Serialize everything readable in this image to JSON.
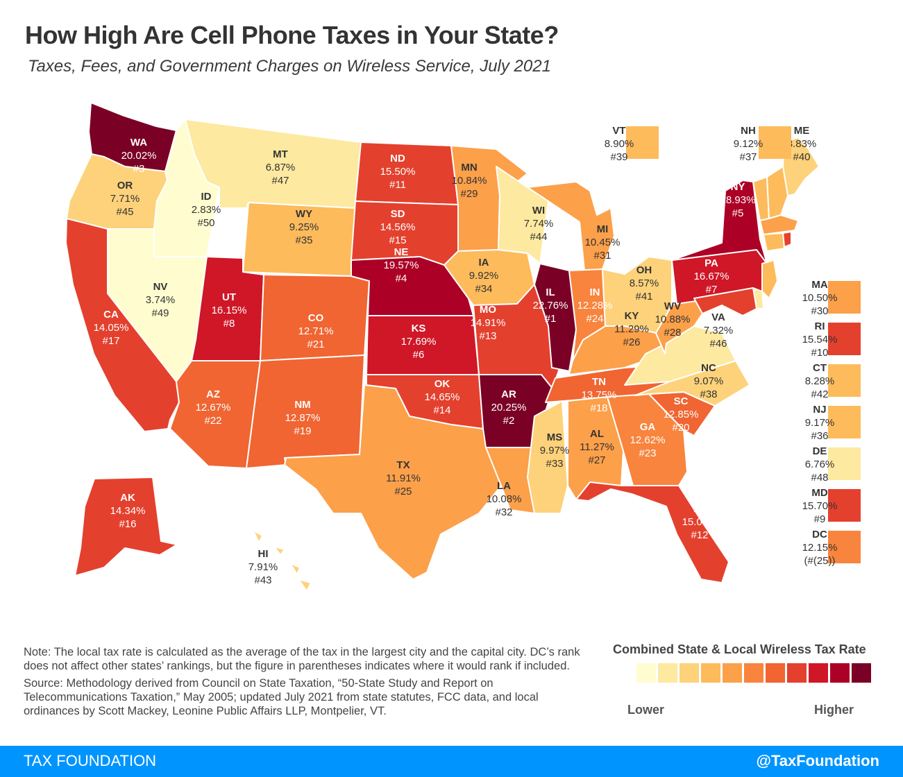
{
  "header": {
    "title": "How High Are Cell Phone Taxes in Your State?",
    "subtitle": "Taxes, Fees, and Government Charges on Wireless Service, July 2021"
  },
  "palette": [
    "#fffdd0",
    "#fde9a0",
    "#fdd27a",
    "#fdbb5c",
    "#fca04a",
    "#f8843d",
    "#f06532",
    "#e4402e",
    "#cf1727",
    "#ac0026",
    "#7a0026"
  ],
  "states": [
    {
      "abbr": "WA",
      "rate": "20.02%",
      "rank": "#3",
      "level": 10
    },
    {
      "abbr": "OR",
      "rate": "7.71%",
      "rank": "#45",
      "level": 2
    },
    {
      "abbr": "ID",
      "rate": "2.83%",
      "rank": "#50",
      "level": 0
    },
    {
      "abbr": "MT",
      "rate": "6.87%",
      "rank": "#47",
      "level": 1
    },
    {
      "abbr": "WY",
      "rate": "9.25%",
      "rank": "#35",
      "level": 3
    },
    {
      "abbr": "NV",
      "rate": "3.74%",
      "rank": "#49",
      "level": 0
    },
    {
      "abbr": "UT",
      "rate": "16.15%",
      "rank": "#8",
      "level": 8
    },
    {
      "abbr": "CA",
      "rate": "14.05%",
      "rank": "#17",
      "level": 7
    },
    {
      "abbr": "AZ",
      "rate": "12.67%",
      "rank": "#22",
      "level": 6
    },
    {
      "abbr": "CO",
      "rate": "12.71%",
      "rank": "#21",
      "level": 6
    },
    {
      "abbr": "NM",
      "rate": "12.87%",
      "rank": "#19",
      "level": 6
    },
    {
      "abbr": "ND",
      "rate": "15.50%",
      "rank": "#11",
      "level": 7
    },
    {
      "abbr": "SD",
      "rate": "14.56%",
      "rank": "#15",
      "level": 7
    },
    {
      "abbr": "NE",
      "rate": "19.57%",
      "rank": "#4",
      "level": 9
    },
    {
      "abbr": "KS",
      "rate": "17.69%",
      "rank": "#6",
      "level": 8
    },
    {
      "abbr": "OK",
      "rate": "14.65%",
      "rank": "#14",
      "level": 7
    },
    {
      "abbr": "TX",
      "rate": "11.91%",
      "rank": "#25",
      "level": 4
    },
    {
      "abbr": "MN",
      "rate": "10.84%",
      "rank": "#29",
      "level": 4
    },
    {
      "abbr": "IA",
      "rate": "9.92%",
      "rank": "#34",
      "level": 3
    },
    {
      "abbr": "MO",
      "rate": "14.91%",
      "rank": "#13",
      "level": 7
    },
    {
      "abbr": "AR",
      "rate": "20.25%",
      "rank": "#2",
      "level": 10
    },
    {
      "abbr": "LA",
      "rate": "10.08%",
      "rank": "#32",
      "level": 4
    },
    {
      "abbr": "WI",
      "rate": "7.74%",
      "rank": "#44",
      "level": 1
    },
    {
      "abbr": "IL",
      "rate": "22.76%",
      "rank": "#1",
      "level": 10
    },
    {
      "abbr": "MI",
      "rate": "10.45%",
      "rank": "#31",
      "level": 4
    },
    {
      "abbr": "IN",
      "rate": "12.28%",
      "rank": "#24",
      "level": 5
    },
    {
      "abbr": "OH",
      "rate": "8.57%",
      "rank": "#41",
      "level": 2
    },
    {
      "abbr": "KY",
      "rate": "11.29%",
      "rank": "#26",
      "level": 4
    },
    {
      "abbr": "TN",
      "rate": "13.75%",
      "rank": "#18",
      "level": 6
    },
    {
      "abbr": "MS",
      "rate": "9.97%",
      "rank": "#33",
      "level": 2
    },
    {
      "abbr": "AL",
      "rate": "11.27%",
      "rank": "#27",
      "level": 4
    },
    {
      "abbr": "GA",
      "rate": "12.62%",
      "rank": "#23",
      "level": 5
    },
    {
      "abbr": "FL",
      "rate": "15.03%",
      "rank": "#12",
      "level": 7
    },
    {
      "abbr": "SC",
      "rate": "12.85%",
      "rank": "#20",
      "level": 6
    },
    {
      "abbr": "NC",
      "rate": "9.07%",
      "rank": "#38",
      "level": 2
    },
    {
      "abbr": "VA",
      "rate": "7.32%",
      "rank": "#46",
      "level": 1
    },
    {
      "abbr": "WV",
      "rate": "10.88%",
      "rank": "#28",
      "level": 4
    },
    {
      "abbr": "PA",
      "rate": "16.67%",
      "rank": "#7",
      "level": 8
    },
    {
      "abbr": "NY",
      "rate": "18.93%",
      "rank": "#5",
      "level": 9
    },
    {
      "abbr": "ME",
      "rate": "8.83%",
      "rank": "#40",
      "level": 2
    },
    {
      "abbr": "AK",
      "rate": "14.34%",
      "rank": "#16",
      "level": 7
    },
    {
      "abbr": "HI",
      "rate": "7.91%",
      "rank": "#43",
      "level": 2
    }
  ],
  "callouts_top": [
    {
      "abbr": "VT",
      "rate": "8.90%",
      "rank": "#39",
      "level": 3
    },
    {
      "abbr": "NH",
      "rate": "9.12%",
      "rank": "#37",
      "level": 3
    }
  ],
  "callouts_side": [
    {
      "abbr": "MA",
      "rate": "10.50%",
      "rank": "#30",
      "level": 4
    },
    {
      "abbr": "RI",
      "rate": "15.54%",
      "rank": "#10",
      "level": 7
    },
    {
      "abbr": "CT",
      "rate": "8.28%",
      "rank": "#42",
      "level": 3
    },
    {
      "abbr": "NJ",
      "rate": "9.17%",
      "rank": "#36",
      "level": 3
    },
    {
      "abbr": "DE",
      "rate": "6.76%",
      "rank": "#48",
      "level": 1
    },
    {
      "abbr": "MD",
      "rate": "15.70%",
      "rank": "#9",
      "level": 7
    },
    {
      "abbr": "DC",
      "rate": "12.15%",
      "rank": "(#(25))",
      "level": 5
    }
  ],
  "note": "Note: The local tax rate is calculated as the average of the tax in the largest city and the capital city. DC’s rank does not affect other states’ rankings, but the figure in parentheses indicates where it would rank if included.",
  "source": "Source: Methodology derived from Council on State Taxation, “50-State Study and Report on Telecommunications Taxation,” May 2005; updated July 2021 from state statutes, FCC data, and local ordinances by Scott Mackey, Leonine Public Affairs LLP, Montpelier, VT.",
  "legend": {
    "title": "Combined State & Local Wireless Tax Rate",
    "low": "Lower",
    "high": "Higher"
  },
  "footer": {
    "org": "TAX FOUNDATION",
    "handle": "@TaxFoundation"
  }
}
